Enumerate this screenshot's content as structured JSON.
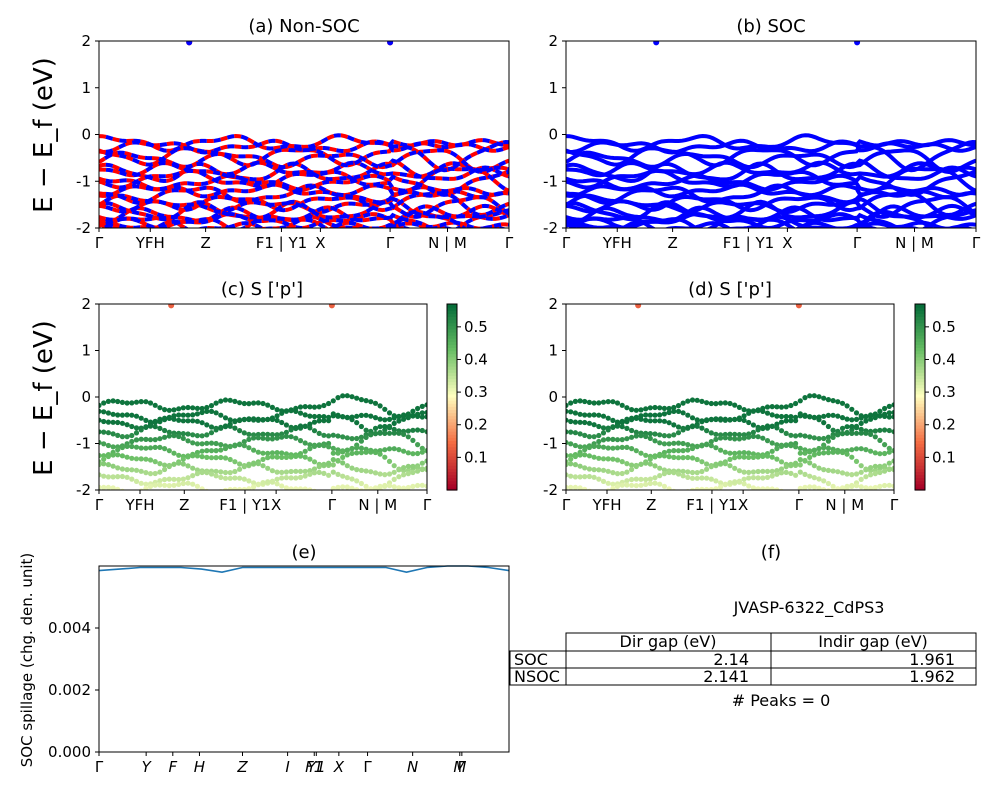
{
  "figure": {
    "ylabel_band": "E − E_f (eV)",
    "ylabel_spillage": "SOC spillage (chg. den. unit)"
  },
  "panels": {
    "a": {
      "title": "(a) Non-SOC"
    },
    "b": {
      "title": "(b) SOC"
    },
    "c": {
      "title": "(c)  S ['p']"
    },
    "d": {
      "title": "(d) S ['p']"
    },
    "e": {
      "title": "(e)"
    },
    "f": {
      "title": "(f)"
    }
  },
  "kpath_labels": [
    "Γ",
    "YFH",
    "Z",
    "F1 | Y1",
    "X",
    "Γ",
    "N | M",
    "Γ"
  ],
  "kpath_labels_e": [
    "Γ",
    "Y",
    "F",
    "H",
    "Z",
    "I",
    "F1",
    "Y1",
    "X",
    "Γ",
    "N",
    "M",
    "Γ"
  ],
  "table": {
    "caption": "JVASP-6322_CdPS3",
    "col_headers": [
      "Dir gap (eV)",
      "Indir gap (eV)"
    ],
    "rows": [
      {
        "label": "SOC",
        "dir": "2.14",
        "indir": "1.961"
      },
      {
        "label": "NSOC",
        "dir": "2.141",
        "indir": "1.962"
      }
    ],
    "peaks": "# Peaks = 0"
  },
  "colors": {
    "nonsoc_spin_up": "#ff0000",
    "nonsoc_spin_down": "#0000ff",
    "soc": "#0000ff",
    "spillage_line": "#1f77b4",
    "colormap": "RdYlGn"
  },
  "chart_data": [
    {
      "type": "line",
      "panel": "a",
      "title": "(a) Non-SOC",
      "ylabel": "E − E_f (eV)",
      "ylim": [
        -2,
        2
      ],
      "yticks": [
        -2,
        -1,
        0,
        1,
        2
      ],
      "xticks": [
        "Γ",
        "YFH",
        "Z",
        "F1 | Y1",
        "X",
        "Γ",
        "N | M",
        "Γ"
      ],
      "series": [
        {
          "color": "#ff0000",
          "kind": "band",
          "levels": [
            -0.18,
            -0.45,
            -0.75,
            -0.95,
            -1.2,
            -1.45,
            -1.65,
            -1.85,
            -1.95
          ]
        },
        {
          "color": "#0000ff",
          "kind": "band",
          "levels": [
            -0.18,
            -0.45,
            -0.75,
            -0.95,
            -1.2,
            -1.45,
            -1.65,
            -1.85,
            -1.95
          ]
        }
      ]
    },
    {
      "type": "line",
      "panel": "b",
      "title": "(b) SOC",
      "ylim": [
        -2,
        2
      ],
      "yticks": [
        -2,
        -1,
        0,
        1,
        2
      ],
      "xticks": [
        "Γ",
        "YFH",
        "Z",
        "F1 | Y1",
        "X",
        "Γ",
        "N | M",
        "Γ"
      ],
      "series": [
        {
          "color": "#0000ff",
          "kind": "band",
          "levels": [
            -0.18,
            -0.45,
            -0.75,
            -0.95,
            -1.2,
            -1.45,
            -1.65,
            -1.85,
            -1.95
          ]
        }
      ]
    },
    {
      "type": "scatter",
      "panel": "c",
      "title": "(c)  S ['p']",
      "ylabel": "E − E_f (eV)",
      "ylim": [
        -2,
        2
      ],
      "yticks": [
        -2,
        -1,
        0,
        1,
        2
      ],
      "colorbar": {
        "ticks": [
          0.1,
          0.2,
          0.3,
          0.4,
          0.5
        ],
        "range": [
          0.0,
          0.57
        ]
      },
      "xticks": [
        "Γ",
        "YFH",
        "Z",
        "F1 | Y1",
        "X",
        "Γ",
        "N | M",
        "Γ"
      ]
    },
    {
      "type": "scatter",
      "panel": "d",
      "title": "(d) S ['p']",
      "ylim": [
        -2,
        2
      ],
      "yticks": [
        -2,
        -1,
        0,
        1,
        2
      ],
      "colorbar": {
        "ticks": [
          0.1,
          0.2,
          0.3,
          0.4,
          0.5
        ],
        "range": [
          0.0,
          0.57
        ]
      },
      "xticks": [
        "Γ",
        "YFH",
        "Z",
        "F1 | Y1",
        "X",
        "Γ",
        "N | M",
        "Γ"
      ]
    },
    {
      "type": "line",
      "panel": "e",
      "title": "(e)",
      "ylabel": "SOC spillage (chg. den. unit)",
      "ylim": [
        0,
        0.006
      ],
      "yticks": [
        0.0,
        0.002,
        0.004
      ],
      "xticks": [
        "Γ",
        "Y",
        "F",
        "H",
        "Z",
        "I",
        "F1",
        "Y1",
        "X",
        "Γ",
        "N",
        "M",
        "Γ"
      ],
      "x": [
        0,
        0.05,
        0.1,
        0.15,
        0.2,
        0.25,
        0.3,
        0.35,
        0.4,
        0.45,
        0.5,
        0.55,
        0.6,
        0.65,
        0.7,
        0.75,
        0.8,
        0.85,
        0.9,
        0.95,
        1.0
      ],
      "values": [
        0.00585,
        0.0059,
        0.00595,
        0.00595,
        0.00595,
        0.0059,
        0.0058,
        0.00595,
        0.00595,
        0.00595,
        0.00595,
        0.00595,
        0.00595,
        0.00595,
        0.00595,
        0.0058,
        0.00595,
        0.006,
        0.006,
        0.00595,
        0.00585
      ]
    }
  ]
}
